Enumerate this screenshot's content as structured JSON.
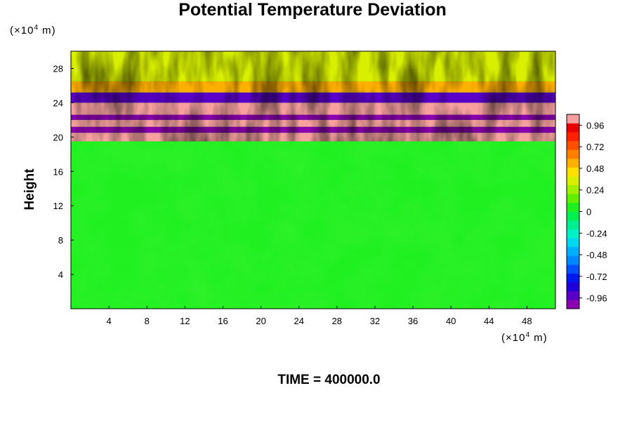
{
  "chart_data": {
    "type": "heatmap",
    "title": "Potential Temperature Deviation",
    "ylabel": "Height",
    "y_unit": "(×10⁴ m)",
    "x_unit": "(×10⁴ m)",
    "x_ticks": [
      4,
      8,
      12,
      16,
      20,
      24,
      28,
      32,
      36,
      40,
      44,
      48
    ],
    "y_ticks": [
      4,
      8,
      12,
      16,
      20,
      24,
      28
    ],
    "xlim": [
      0,
      51
    ],
    "ylim": [
      0,
      30
    ],
    "colorbar": {
      "ticks": [
        "0.96",
        "0.72",
        "0.48",
        "0.24",
        "0",
        "-0.24",
        "-0.48",
        "-0.72",
        "-0.96"
      ],
      "vmin": -1.08,
      "vmax": 1.08,
      "colors": [
        "#8a00b0",
        "#5a00c8",
        "#2000d8",
        "#0018f0",
        "#0050ff",
        "#0088ff",
        "#00b0ff",
        "#00d8f0",
        "#00f0c8",
        "#00f090",
        "#00f050",
        "#20f020",
        "#60f000",
        "#a0f000",
        "#d8f000",
        "#ffe000",
        "#ffb000",
        "#ff8000",
        "#ff5000",
        "#ff2000",
        "#e80000",
        "#f8a0a0"
      ]
    },
    "bands": [
      {
        "y": [
          19.5,
          20.5
        ],
        "value": 1.0
      },
      {
        "y": [
          20.5,
          21.2
        ],
        "value": -1.0
      },
      {
        "y": [
          21.2,
          22.0
        ],
        "value": 1.0
      },
      {
        "y": [
          22.0,
          22.6
        ],
        "value": -1.0
      },
      {
        "y": [
          22.6,
          24.0
        ],
        "value": 1.0
      },
      {
        "y": [
          24.0,
          25.2
        ],
        "value": -0.9
      },
      {
        "y": [
          25.2,
          26.5
        ],
        "value": 0.5
      },
      {
        "y": [
          26.5,
          30.0
        ],
        "value": 0.3
      }
    ],
    "lower_field_value": 0.02
  },
  "footer": {
    "time_label": "TIME = 400000.0"
  }
}
